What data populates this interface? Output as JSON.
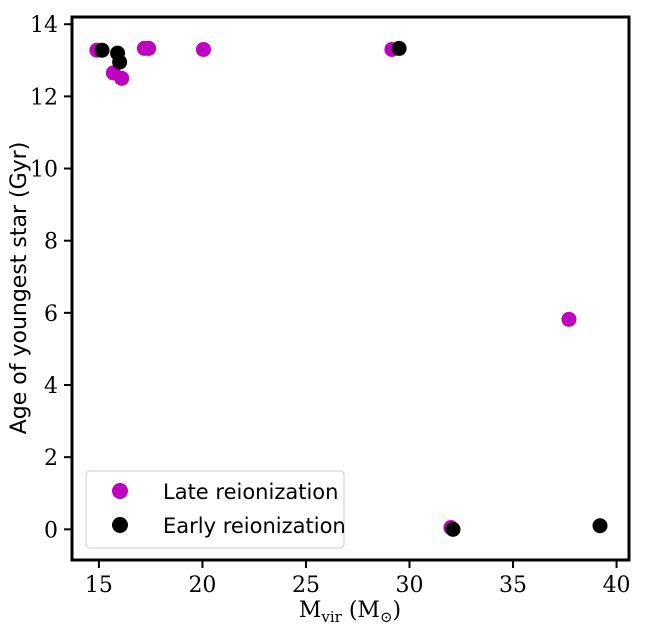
{
  "chart_data": {
    "type": "scatter",
    "title": "",
    "xlabel_main": "M",
    "xlabel_sub": "vir",
    "xlabel_unit_open": " (M",
    "xlabel_unit_sub": "⊙",
    "xlabel_unit_close": ")",
    "ylabel": "Age of youngest star (Gyr)",
    "xlim": [
      13.7,
      40.6
    ],
    "ylim": [
      -0.85,
      14.2
    ],
    "xticks": [
      15,
      20,
      25,
      30,
      35,
      40
    ],
    "yticks": [
      0,
      2,
      4,
      6,
      8,
      10,
      12,
      14
    ],
    "grid": false,
    "legend_position": "lower-left",
    "series": [
      {
        "name": "Late reionization",
        "color": "#c000c0",
        "points": [
          {
            "x": 14.9,
            "y": 13.28
          },
          {
            "x": 15.7,
            "y": 12.65
          },
          {
            "x": 16.1,
            "y": 12.5
          },
          {
            "x": 17.2,
            "y": 13.33
          },
          {
            "x": 17.4,
            "y": 13.33
          },
          {
            "x": 20.05,
            "y": 13.3
          },
          {
            "x": 29.15,
            "y": 13.3
          },
          {
            "x": 37.7,
            "y": 5.82
          },
          {
            "x": 32.0,
            "y": 0.05
          }
        ]
      },
      {
        "name": "Early reionization",
        "color": "#000000",
        "points": [
          {
            "x": 15.15,
            "y": 13.28
          },
          {
            "x": 15.9,
            "y": 13.2
          },
          {
            "x": 16.0,
            "y": 12.95
          },
          {
            "x": 29.5,
            "y": 13.33
          },
          {
            "x": 32.1,
            "y": 0.0
          },
          {
            "x": 39.2,
            "y": 0.1
          }
        ]
      }
    ]
  }
}
